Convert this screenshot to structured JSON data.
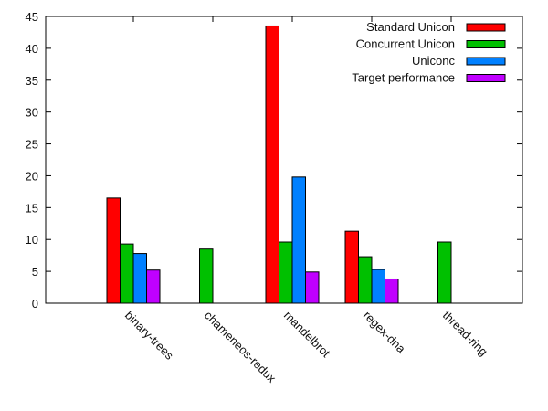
{
  "chart_data": {
    "type": "bar",
    "categories": [
      "binary-trees",
      "chameneos-redux",
      "mandelbrot",
      "regex-dna",
      "thread-ring"
    ],
    "series": [
      {
        "name": "Standard Unicon",
        "color": "#ff0000",
        "values": [
          16.5,
          null,
          43.5,
          11.3,
          null
        ]
      },
      {
        "name": "Concurrent Unicon",
        "color": "#00c000",
        "values": [
          9.3,
          8.5,
          9.6,
          7.3,
          9.6
        ]
      },
      {
        "name": "Uniconc",
        "color": "#0080ff",
        "values": [
          7.8,
          null,
          19.8,
          5.3,
          null
        ]
      },
      {
        "name": "Target performance",
        "color": "#c000ff",
        "values": [
          5.2,
          null,
          4.9,
          3.8,
          null
        ]
      }
    ],
    "ylim": [
      0,
      45
    ],
    "yticks": [
      0,
      5,
      10,
      15,
      20,
      25,
      30,
      35,
      40,
      45
    ],
    "xlabel": "",
    "ylabel": "",
    "legend_position": "top-right",
    "grid": false
  }
}
